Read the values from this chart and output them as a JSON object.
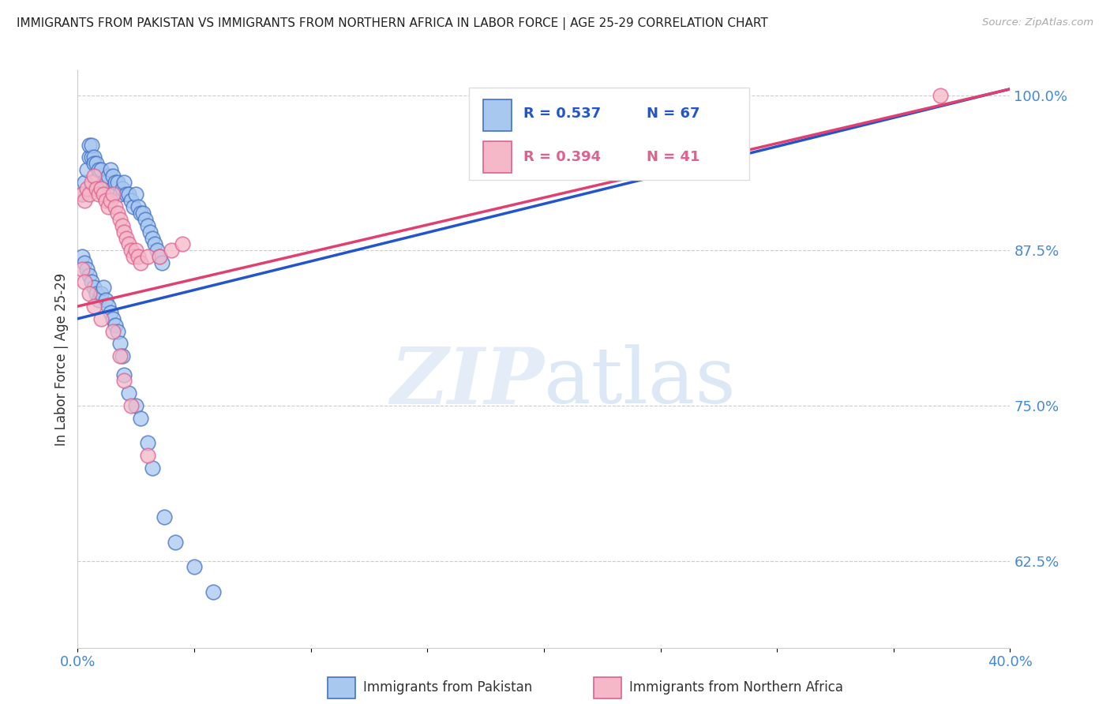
{
  "title": "IMMIGRANTS FROM PAKISTAN VS IMMIGRANTS FROM NORTHERN AFRICA IN LABOR FORCE | AGE 25-29 CORRELATION CHART",
  "source": "Source: ZipAtlas.com",
  "ylabel": "In Labor Force | Age 25-29",
  "xlim": [
    0.0,
    0.4
  ],
  "ylim": [
    0.555,
    1.02
  ],
  "xticks": [
    0.0,
    0.05,
    0.1,
    0.15,
    0.2,
    0.25,
    0.3,
    0.35,
    0.4
  ],
  "xticklabels": [
    "0.0%",
    "",
    "",
    "",
    "",
    "",
    "",
    "",
    "40.0%"
  ],
  "yticks_right": [
    0.625,
    0.75,
    0.875,
    1.0
  ],
  "yticklabels_right": [
    "62.5%",
    "75.0%",
    "87.5%",
    "100.0%"
  ],
  "legend_r_blue": "R = 0.537",
  "legend_n_blue": "N = 67",
  "legend_r_pink": "R = 0.394",
  "legend_n_pink": "N = 41",
  "blue_color": "#a8c8f0",
  "pink_color": "#f4b8c8",
  "blue_edge_color": "#4472c4",
  "pink_edge_color": "#e06090",
  "blue_line_color": "#2255cc",
  "pink_line_color": "#e04070",
  "watermark_zip": "ZIP",
  "watermark_atlas": "atlas",
  "background_color": "#ffffff",
  "blue_x": [
    0.002,
    0.003,
    0.004,
    0.005,
    0.005,
    0.006,
    0.006,
    0.007,
    0.007,
    0.008,
    0.009,
    0.01,
    0.011,
    0.012,
    0.013,
    0.014,
    0.015,
    0.015,
    0.016,
    0.017,
    0.018,
    0.019,
    0.02,
    0.021,
    0.022,
    0.023,
    0.024,
    0.025,
    0.026,
    0.027,
    0.028,
    0.029,
    0.03,
    0.031,
    0.032,
    0.033,
    0.034,
    0.035,
    0.036,
    0.002,
    0.003,
    0.004,
    0.005,
    0.006,
    0.007,
    0.008,
    0.009,
    0.01,
    0.011,
    0.012,
    0.013,
    0.014,
    0.015,
    0.016,
    0.017,
    0.018,
    0.019,
    0.02,
    0.022,
    0.025,
    0.027,
    0.03,
    0.032,
    0.037,
    0.042,
    0.05,
    0.058
  ],
  "blue_y": [
    0.92,
    0.93,
    0.94,
    0.95,
    0.96,
    0.95,
    0.96,
    0.95,
    0.945,
    0.945,
    0.94,
    0.94,
    0.93,
    0.93,
    0.935,
    0.94,
    0.935,
    0.925,
    0.93,
    0.93,
    0.92,
    0.925,
    0.93,
    0.92,
    0.92,
    0.915,
    0.91,
    0.92,
    0.91,
    0.905,
    0.905,
    0.9,
    0.895,
    0.89,
    0.885,
    0.88,
    0.875,
    0.87,
    0.865,
    0.87,
    0.865,
    0.86,
    0.855,
    0.85,
    0.845,
    0.84,
    0.835,
    0.84,
    0.845,
    0.835,
    0.83,
    0.825,
    0.82,
    0.815,
    0.81,
    0.8,
    0.79,
    0.775,
    0.76,
    0.75,
    0.74,
    0.72,
    0.7,
    0.66,
    0.64,
    0.62,
    0.6
  ],
  "pink_x": [
    0.002,
    0.003,
    0.004,
    0.005,
    0.006,
    0.007,
    0.008,
    0.009,
    0.01,
    0.011,
    0.012,
    0.013,
    0.014,
    0.015,
    0.016,
    0.017,
    0.018,
    0.019,
    0.02,
    0.021,
    0.022,
    0.023,
    0.024,
    0.025,
    0.026,
    0.027,
    0.03,
    0.035,
    0.04,
    0.045,
    0.002,
    0.003,
    0.005,
    0.007,
    0.01,
    0.015,
    0.018,
    0.02,
    0.023,
    0.03,
    0.37
  ],
  "pink_y": [
    0.92,
    0.915,
    0.925,
    0.92,
    0.93,
    0.935,
    0.925,
    0.92,
    0.925,
    0.92,
    0.915,
    0.91,
    0.915,
    0.92,
    0.91,
    0.905,
    0.9,
    0.895,
    0.89,
    0.885,
    0.88,
    0.875,
    0.87,
    0.875,
    0.87,
    0.865,
    0.87,
    0.87,
    0.875,
    0.88,
    0.86,
    0.85,
    0.84,
    0.83,
    0.82,
    0.81,
    0.79,
    0.77,
    0.75,
    0.71,
    1.0
  ],
  "blue_trend_x0": 0.0,
  "blue_trend_y0": 0.82,
  "blue_trend_x1": 0.4,
  "blue_trend_y1": 1.005,
  "pink_trend_x0": 0.0,
  "pink_trend_y0": 0.83,
  "pink_trend_x1": 0.4,
  "pink_trend_y1": 1.005
}
